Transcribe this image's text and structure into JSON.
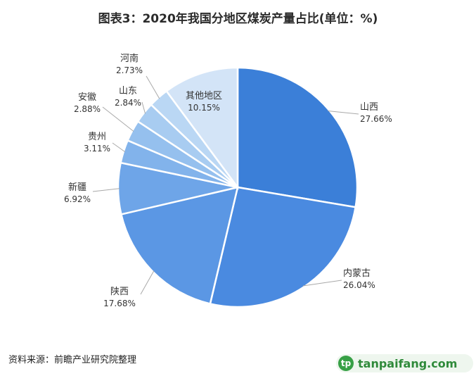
{
  "chart_data": {
    "type": "pie",
    "title": "图表3：2020年我国分地区煤炭产量占比(单位：%)",
    "unit": "%",
    "slices": [
      {
        "name": "山西",
        "value": 27.66,
        "value_label": "27.66%",
        "color": "#3b7fd8"
      },
      {
        "name": "内蒙古",
        "value": 26.04,
        "value_label": "26.04%",
        "color": "#4a8ae0"
      },
      {
        "name": "陕西",
        "value": 17.68,
        "value_label": "17.68%",
        "color": "#5b97e4"
      },
      {
        "name": "新疆",
        "value": 6.92,
        "value_label": "6.92%",
        "color": "#6ea5e8"
      },
      {
        "name": "贵州",
        "value": 3.11,
        "value_label": "3.11%",
        "color": "#82b3eb"
      },
      {
        "name": "安徽",
        "value": 2.88,
        "value_label": "2.88%",
        "color": "#95c0ee"
      },
      {
        "name": "山东",
        "value": 2.84,
        "value_label": "2.84%",
        "color": "#a8ccf1"
      },
      {
        "name": "河南",
        "value": 2.73,
        "value_label": "2.73%",
        "color": "#bad7f4"
      },
      {
        "name": "其他地区",
        "value": 10.15,
        "value_label": "10.15%",
        "color": "#d3e4f7"
      }
    ]
  },
  "source": "资料来源：前瞻产业研究院整理",
  "watermark": {
    "badge": "tp",
    "text": "tanpaifang.com"
  }
}
